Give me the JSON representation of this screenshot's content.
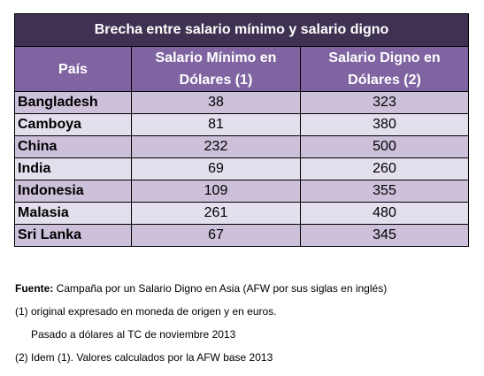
{
  "table": {
    "title": "Brecha entre salario mínimo y salario digno",
    "headers": {
      "country": "País",
      "min_wage_line1": "Salario Mínimo en",
      "min_wage_line2": "Dólares (1)",
      "living_wage_line1": "Salario Digno en",
      "living_wage_line2": "Dólares (2)"
    },
    "rows": [
      {
        "country": "Bangladesh",
        "min": "38",
        "living": "323"
      },
      {
        "country": "Camboya",
        "min": "81",
        "living": "380"
      },
      {
        "country": "China",
        "min": "232",
        "living": "500"
      },
      {
        "country": "India",
        "min": "69",
        "living": "260"
      },
      {
        "country": "Indonesia",
        "min": "109",
        "living": "355"
      },
      {
        "country": "Malasia",
        "min": "261",
        "living": "480"
      },
      {
        "country": "Sri Lanka",
        "min": "67",
        "living": "345"
      }
    ]
  },
  "notes": {
    "source_label": "Fuente:",
    "source_text": " Campaña por un Salario Digno en Asia (AFW por sus siglas en inglés)",
    "note1_line1": "(1) original expresado en moneda de origen y en euros.",
    "note1_line2": "Pasado a dólares al TC de noviembre 2013",
    "note2": "(2) Idem (1). Valores calculados por la AFW base 2013"
  },
  "colors": {
    "title_bg": "#3f3151",
    "header_bg": "#8064a2",
    "row_odd_bg": "#ccc0da",
    "row_even_bg": "#e4dfec"
  }
}
